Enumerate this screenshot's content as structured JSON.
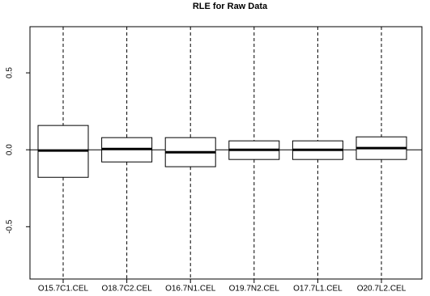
{
  "chart_data": {
    "type": "boxplot",
    "title": "RLE for Raw Data",
    "categories": [
      "O15.7C1.CEL",
      "O18.7C2.CEL",
      "O16.7N1.CEL",
      "O19.7N2.CEL",
      "O17.7L1.CEL",
      "O20.7L2.CEL"
    ],
    "whisker_high": [
      0.8,
      0.8,
      0.8,
      0.8,
      0.8,
      0.8
    ],
    "q3": [
      0.158,
      0.079,
      0.079,
      0.058,
      0.058,
      0.084
    ],
    "median": [
      -0.005,
      0.005,
      -0.016,
      0,
      0,
      0.011
    ],
    "q1": [
      -0.179,
      -0.079,
      -0.11,
      -0.063,
      -0.063,
      -0.063
    ],
    "whisker_low": [
      -0.84,
      -0.84,
      -0.84,
      -0.84,
      -0.84,
      -0.84
    ],
    "reference_line": 0,
    "ylim": [
      -0.84,
      0.8
    ],
    "yticks": [
      -0.5,
      {
        "value": 0,
        "label": "0.0"
      },
      0.5
    ],
    "color": "#ffffff"
  }
}
